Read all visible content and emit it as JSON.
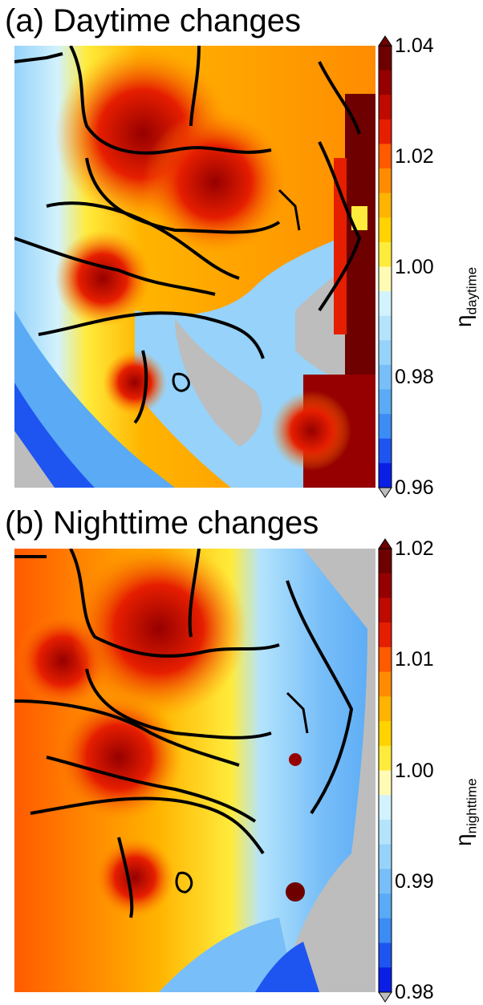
{
  "panels": [
    {
      "title": "(a) Daytime changes",
      "colorbar": {
        "symbol": "η",
        "subscript": "daytime",
        "ticks": [
          "1.04",
          "1.02",
          "1.00",
          "0.98",
          "0.96"
        ],
        "range": [
          0.96,
          1.04
        ],
        "colors": [
          "#0a1ee6",
          "#1e55f0",
          "#3c8cf5",
          "#5aaaf5",
          "#78bef8",
          "#96d2fa",
          "#b4e4fc",
          "#d2f2fd",
          "#fffbb4",
          "#ffeb3c",
          "#ffd200",
          "#ffb400",
          "#ff8c00",
          "#ff5a00",
          "#e61e00",
          "#be0a00",
          "#960000",
          "#6e0000"
        ]
      }
    },
    {
      "title": "(b) Nighttime changes",
      "colorbar": {
        "symbol": "η",
        "subscript": "nighttime",
        "ticks": [
          "1.02",
          "1.01",
          "1.00",
          "0.99",
          "0.98"
        ],
        "range": [
          0.98,
          1.02
        ],
        "colors": [
          "#0a1ee6",
          "#1e55f0",
          "#3c8cf5",
          "#5aaaf5",
          "#78bef8",
          "#96d2fa",
          "#b4e4fc",
          "#d2f2fd",
          "#fffbb4",
          "#ffeb3c",
          "#ffd200",
          "#ffb400",
          "#ff8c00",
          "#ff5a00",
          "#e61e00",
          "#be0a00",
          "#960000",
          "#6e0000"
        ]
      }
    }
  ],
  "colors": {
    "sea_mask": "#bdbdbd",
    "border": "#000000"
  }
}
